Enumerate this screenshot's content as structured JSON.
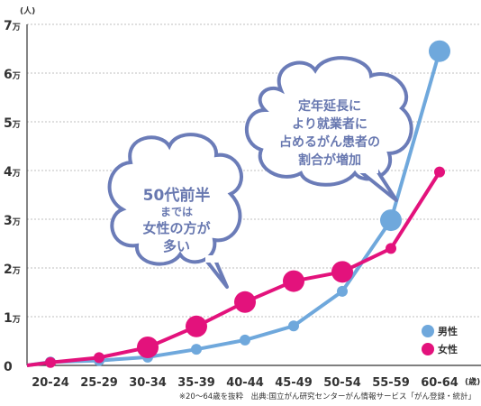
{
  "chart_data": {
    "type": "line",
    "y_unit": "(人)",
    "x_unit": "(歳)",
    "y_ticks": [
      {
        "value": 0,
        "num": "0",
        "suffix": ""
      },
      {
        "value": 10000,
        "num": "1",
        "suffix": "万"
      },
      {
        "value": 20000,
        "num": "2",
        "suffix": "万"
      },
      {
        "value": 30000,
        "num": "3",
        "suffix": "万"
      },
      {
        "value": 40000,
        "num": "4",
        "suffix": "万"
      },
      {
        "value": 50000,
        "num": "5",
        "suffix": "万"
      },
      {
        "value": 60000,
        "num": "6",
        "suffix": "万"
      },
      {
        "value": 70000,
        "num": "7",
        "suffix": "万"
      }
    ],
    "ylim": [
      0,
      70000
    ],
    "grid": "horizontal-dashed",
    "categories": [
      "20-24",
      "25-29",
      "30-34",
      "35-39",
      "40-44",
      "45-49",
      "50-54",
      "55-59",
      "60-64"
    ],
    "series": [
      {
        "name": "男性",
        "color": "#6fa8dc",
        "values": [
          700,
          1000,
          1700,
          3300,
          5200,
          8100,
          15200,
          29800,
          64500
        ]
      },
      {
        "name": "女性",
        "color": "#e3127c",
        "values": [
          600,
          1600,
          3700,
          8000,
          13000,
          17300,
          19200,
          24000,
          39700
        ]
      }
    ],
    "legend_position": "bottom-right",
    "annotations": [
      {
        "lines": [
          "50代前半",
          "までは",
          "女性の方が",
          "多い"
        ]
      },
      {
        "lines": [
          "定年延長に",
          "より就業者に",
          "占めるがん患者の",
          "割合が増加"
        ]
      }
    ],
    "footnote": "※20～64歳を抜粋　出典:国立がん研究センターがん情報サービス「がん登録・統計」"
  }
}
